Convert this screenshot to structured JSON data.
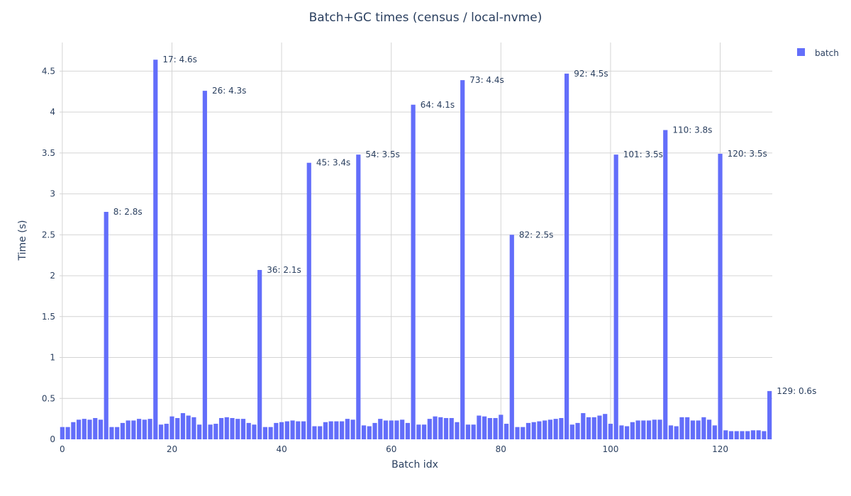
{
  "chart_data": {
    "type": "bar",
    "title": "Batch+GC times (census / local-nvme)",
    "xlabel": "Batch idx",
    "ylabel": "Time (s)",
    "xlim": [
      -0.5,
      129.5
    ],
    "ylim": [
      0,
      4.85
    ],
    "xticks": [
      0,
      20,
      40,
      60,
      80,
      100,
      120
    ],
    "yticks": [
      0,
      0.5,
      1,
      1.5,
      2,
      2.5,
      3,
      3.5,
      4,
      4.5
    ],
    "ytick_labels": [
      "0",
      "0.5",
      "1",
      "1.5",
      "2",
      "2.5",
      "3",
      "3.5",
      "4",
      "4.5"
    ],
    "grid": true,
    "legend_position": "top-right",
    "color": "#636efa",
    "series": [
      {
        "name": "batch",
        "values": [
          0.15,
          0.15,
          0.21,
          0.24,
          0.25,
          0.24,
          0.26,
          0.24,
          2.78,
          0.15,
          0.15,
          0.2,
          0.23,
          0.23,
          0.25,
          0.24,
          0.25,
          4.64,
          0.18,
          0.19,
          0.28,
          0.26,
          0.32,
          0.29,
          0.27,
          0.18,
          4.26,
          0.18,
          0.19,
          0.26,
          0.27,
          0.26,
          0.25,
          0.25,
          0.2,
          0.18,
          2.07,
          0.15,
          0.15,
          0.2,
          0.21,
          0.22,
          0.23,
          0.22,
          0.22,
          3.38,
          0.16,
          0.16,
          0.21,
          0.22,
          0.22,
          0.22,
          0.25,
          0.24,
          3.48,
          0.17,
          0.16,
          0.2,
          0.25,
          0.23,
          0.23,
          0.23,
          0.24,
          0.2,
          4.09,
          0.18,
          0.18,
          0.25,
          0.28,
          0.27,
          0.26,
          0.26,
          0.21,
          4.39,
          0.18,
          0.18,
          0.29,
          0.28,
          0.26,
          0.26,
          0.3,
          0.19,
          2.5,
          0.15,
          0.15,
          0.2,
          0.21,
          0.22,
          0.23,
          0.24,
          0.25,
          0.26,
          4.47,
          0.18,
          0.2,
          0.32,
          0.27,
          0.27,
          0.29,
          0.31,
          0.19,
          3.48,
          0.17,
          0.16,
          0.21,
          0.23,
          0.23,
          0.23,
          0.24,
          0.24,
          3.78,
          0.17,
          0.16,
          0.27,
          0.27,
          0.23,
          0.23,
          0.27,
          0.24,
          0.17,
          3.49,
          0.11,
          0.1,
          0.1,
          0.1,
          0.1,
          0.11,
          0.11,
          0.1,
          0.59
        ]
      }
    ],
    "annotations": [
      {
        "x": 8,
        "text": "8: 2.8s"
      },
      {
        "x": 17,
        "text": "17: 4.6s"
      },
      {
        "x": 26,
        "text": "26: 4.3s"
      },
      {
        "x": 36,
        "text": "36: 2.1s"
      },
      {
        "x": 45,
        "text": "45: 3.4s"
      },
      {
        "x": 54,
        "text": "54: 3.5s"
      },
      {
        "x": 64,
        "text": "64: 4.1s"
      },
      {
        "x": 73,
        "text": "73: 4.4s"
      },
      {
        "x": 82,
        "text": "82: 2.5s"
      },
      {
        "x": 92,
        "text": "92: 4.5s"
      },
      {
        "x": 101,
        "text": "101: 3.5s"
      },
      {
        "x": 110,
        "text": "110: 3.8s"
      },
      {
        "x": 120,
        "text": "120: 3.5s"
      },
      {
        "x": 129,
        "text": "129: 0.6s"
      }
    ]
  }
}
